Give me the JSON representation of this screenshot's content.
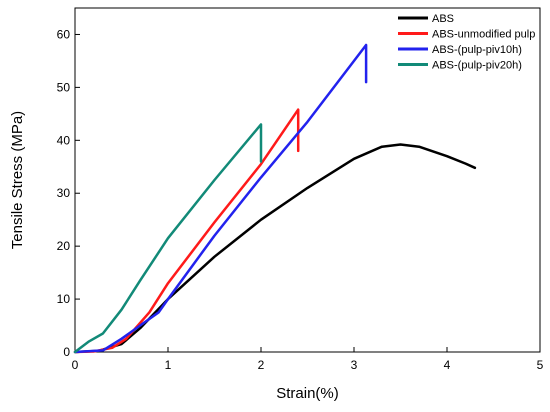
{
  "chart_data": {
    "type": "line",
    "title": "",
    "xlabel": "Strain(%)",
    "ylabel": "Tensile Stress (MPa)",
    "xlim": [
      0,
      5
    ],
    "ylim": [
      0,
      65
    ],
    "x_ticks": [
      0,
      1,
      2,
      3,
      4,
      5
    ],
    "y_ticks": [
      0,
      10,
      20,
      30,
      40,
      50,
      60
    ],
    "grid": false,
    "legend_position": "top-right",
    "series": [
      {
        "name": "ABS",
        "color": "#000000",
        "points": [
          [
            0,
            0
          ],
          [
            0.25,
            0.2
          ],
          [
            0.5,
            1.5
          ],
          [
            0.7,
            4.5
          ],
          [
            1.0,
            10
          ],
          [
            1.5,
            18
          ],
          [
            2.0,
            25
          ],
          [
            2.5,
            31
          ],
          [
            3.0,
            36.5
          ],
          [
            3.3,
            38.8
          ],
          [
            3.5,
            39.2
          ],
          [
            3.7,
            38.8
          ],
          [
            4.0,
            37
          ],
          [
            4.2,
            35.6
          ],
          [
            4.3,
            34.8
          ]
        ]
      },
      {
        "name": "ABS-unmodified pulp",
        "color": "#ff1a1a",
        "points": [
          [
            0,
            0
          ],
          [
            0.2,
            0.1
          ],
          [
            0.4,
            0.8
          ],
          [
            0.55,
            2.5
          ],
          [
            0.8,
            7.5
          ],
          [
            1.0,
            13
          ],
          [
            1.5,
            24.5
          ],
          [
            2.0,
            35.5
          ],
          [
            2.4,
            45.8
          ],
          [
            2.4,
            38
          ]
        ]
      },
      {
        "name": "ABS-(pulp-piv10h)",
        "color": "#2222ee",
        "points": [
          [
            0,
            0
          ],
          [
            0.3,
            0.3
          ],
          [
            0.5,
            2.5
          ],
          [
            0.7,
            5
          ],
          [
            0.9,
            7.5
          ],
          [
            1.0,
            10
          ],
          [
            1.5,
            22
          ],
          [
            2.0,
            33
          ],
          [
            2.5,
            43.5
          ],
          [
            3.0,
            55
          ],
          [
            3.13,
            58
          ],
          [
            3.13,
            51
          ]
        ]
      },
      {
        "name": "ABS-(pulp-piv20h)",
        "color": "#128a78",
        "points": [
          [
            0,
            0
          ],
          [
            0.15,
            2
          ],
          [
            0.3,
            3.5
          ],
          [
            0.5,
            8
          ],
          [
            0.7,
            13.5
          ],
          [
            1.0,
            21.5
          ],
          [
            1.5,
            32.5
          ],
          [
            2.0,
            43
          ],
          [
            2.0,
            36
          ]
        ]
      }
    ]
  }
}
